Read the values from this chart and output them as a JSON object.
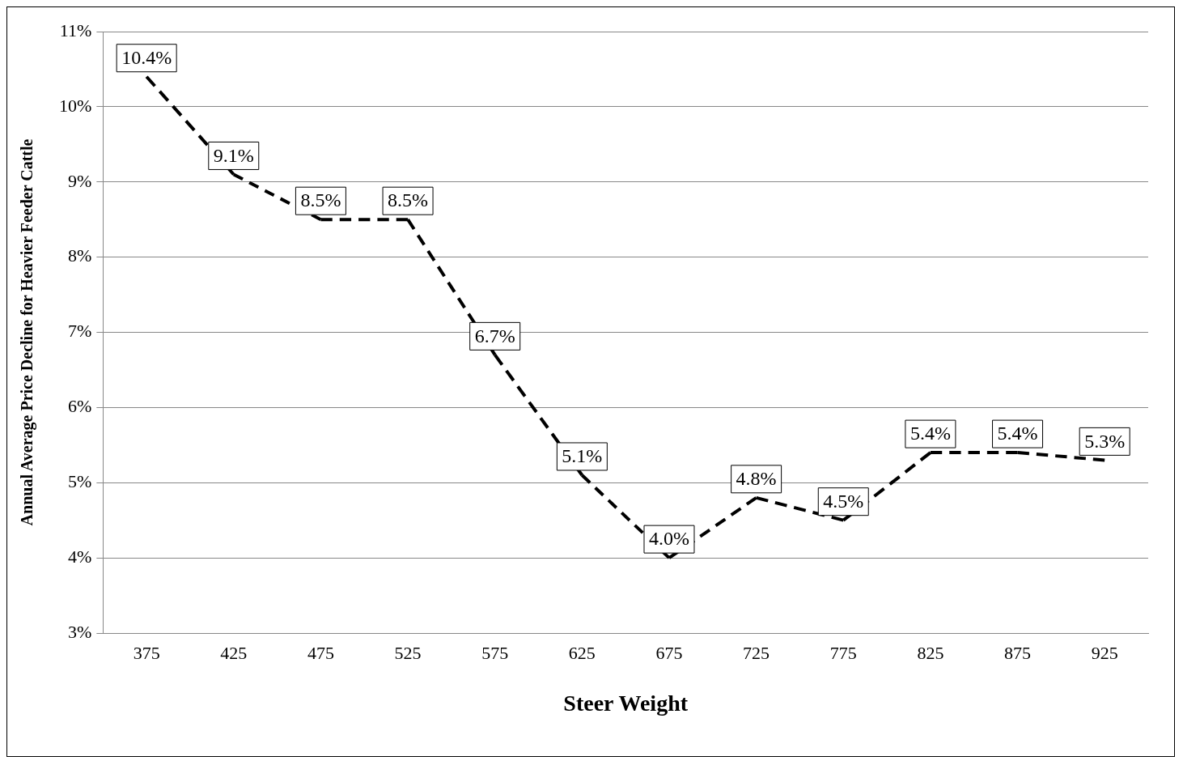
{
  "chart_data": {
    "type": "line",
    "xlabel": "Steer Weight",
    "ylabel": "Annual Average Price Decline for Heavier Feeder Cattle",
    "categories": [
      "375",
      "425",
      "475",
      "525",
      "575",
      "625",
      "675",
      "725",
      "775",
      "825",
      "875",
      "925"
    ],
    "series": [
      {
        "color": "#000000",
        "values": [
          10.4,
          9.1,
          8.5,
          8.5,
          6.7,
          5.1,
          4.0,
          4.8,
          4.5,
          5.4,
          5.4,
          5.3
        ],
        "value_labels": [
          "10.4%",
          "9.1%",
          "8.5%",
          "8.5%",
          "6.7%",
          "5.1%",
          "4.0%",
          "4.8%",
          "4.5%",
          "5.4%",
          "5.4%",
          "5.3%"
        ]
      }
    ],
    "ylim": [
      3,
      11
    ],
    "yticks": [
      {
        "value": 3,
        "label": "3%"
      },
      {
        "value": 4,
        "label": "4%"
      },
      {
        "value": 5,
        "label": "5%"
      },
      {
        "value": 6,
        "label": "6%"
      },
      {
        "value": 7,
        "label": "7%"
      },
      {
        "value": 8,
        "label": "8%"
      },
      {
        "value": 9,
        "label": "9%"
      },
      {
        "value": 10,
        "label": "10%"
      },
      {
        "value": 11,
        "label": "11%"
      }
    ],
    "grid": "y",
    "line_style": "dashed"
  }
}
